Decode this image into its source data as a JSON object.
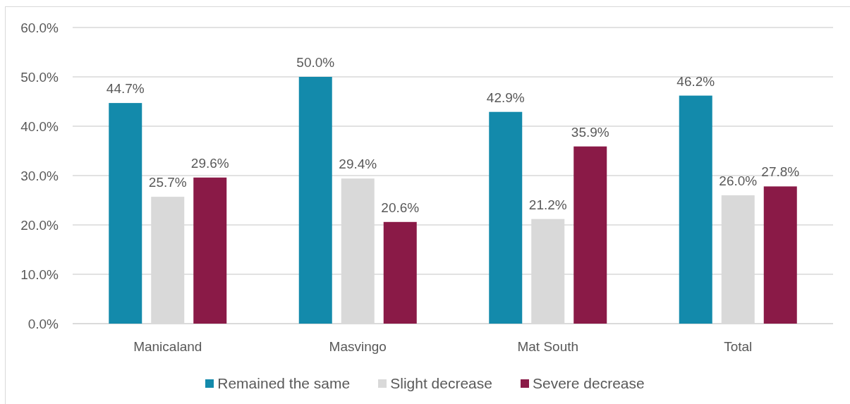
{
  "chart_data": {
    "type": "bar",
    "categories": [
      "Manicaland",
      "Masvingo",
      "Mat South",
      "Total"
    ],
    "series": [
      {
        "name": "Remained the same",
        "color": "#138aab",
        "values": [
          44.7,
          50.0,
          42.9,
          46.2
        ],
        "value_labels": [
          "44.7%",
          "50.0%",
          "42.9%",
          "46.2%"
        ]
      },
      {
        "name": "Slight decrease",
        "color": "#d9d9d9",
        "values": [
          25.7,
          29.4,
          21.2,
          26.0
        ],
        "value_labels": [
          "25.7%",
          "29.4%",
          "21.2%",
          "26.0%"
        ]
      },
      {
        "name": "Severe decrease",
        "color": "#8a1a47",
        "values": [
          29.6,
          20.6,
          35.9,
          27.8
        ],
        "value_labels": [
          "29.6%",
          "20.6%",
          "35.9%",
          "27.8%"
        ]
      }
    ],
    "ylim": [
      0,
      60
    ],
    "yticks": [
      {
        "value": 0,
        "label": "0.0%"
      },
      {
        "value": 10,
        "label": "10.0%"
      },
      {
        "value": 20,
        "label": "20.0%"
      },
      {
        "value": 30,
        "label": "30.0%"
      },
      {
        "value": 40,
        "label": "40.0%"
      },
      {
        "value": 50,
        "label": "50.0%"
      },
      {
        "value": 60,
        "label": "60.0%"
      }
    ],
    "grid": "y",
    "legend": "bottom"
  }
}
